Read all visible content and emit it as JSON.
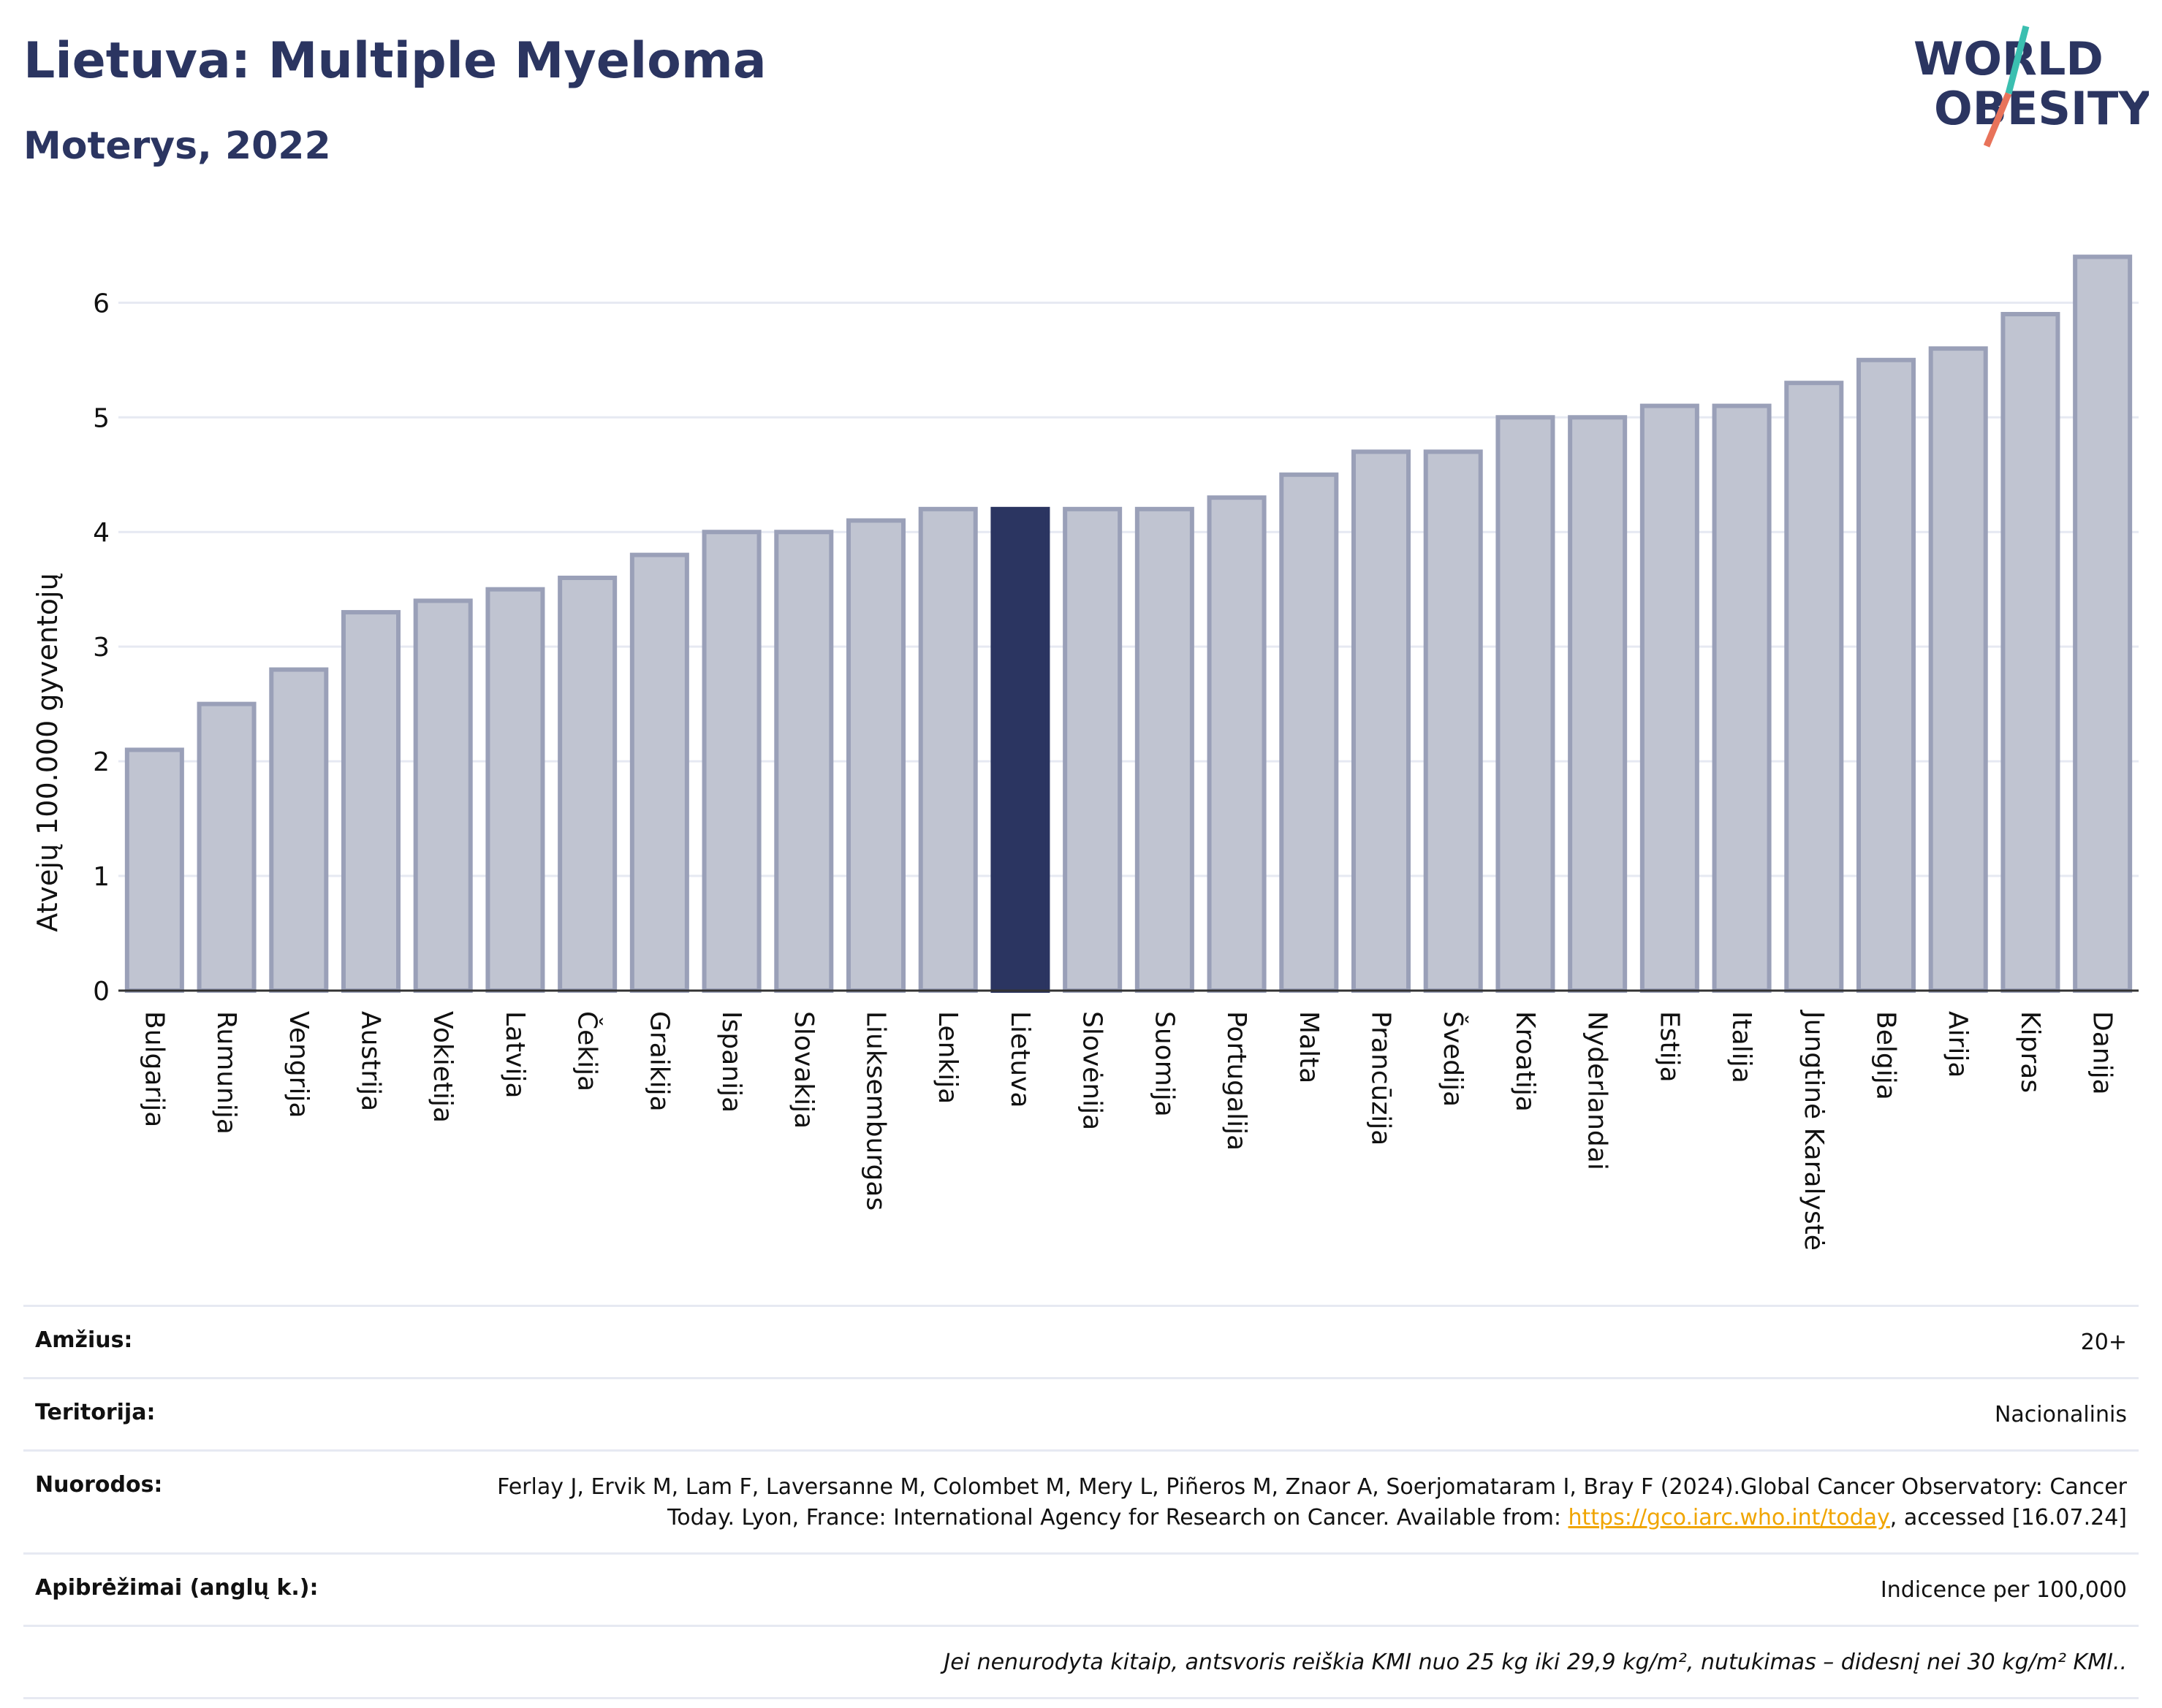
{
  "header": {
    "title": "Lietuva: Multiple Myeloma",
    "subtitle": "Moterys, 2022"
  },
  "logo": {
    "line1": "WORLD",
    "line2": "OBESITY",
    "colors": {
      "text": "#2b3561",
      "slash_top": "#3bbfb0",
      "slash_bottom": "#e8735a"
    }
  },
  "colors": {
    "bar_default": "#c0c4d1",
    "bar_default_border": "#9aa0b8",
    "bar_highlight": "#2b3561",
    "grid": "#e6e9f2",
    "axis": "#333333"
  },
  "chart_data": {
    "type": "bar",
    "ylabel": "Atvejų 100.000 gyventojų",
    "xlabel": "",
    "ylim": [
      0,
      6.55
    ],
    "yticks": [
      0,
      1,
      2,
      3,
      4,
      5,
      6
    ],
    "grid": true,
    "highlight": "Lietuva",
    "categories": [
      "Bulgarija",
      "Rumunija",
      "Vengrija",
      "Austrija",
      "Vokietija",
      "Latvija",
      "Čekija",
      "Graikija",
      "Ispanija",
      "Slovakija",
      "Liuksemburgas",
      "Lenkija",
      "Lietuva",
      "Slovėnija",
      "Suomija",
      "Portugalija",
      "Malta",
      "Prancūzija",
      "Švedija",
      "Kroatija",
      "Nyderlandai",
      "Estija",
      "Italija",
      "Jungtinė Karalystė",
      "Belgija",
      "Airija",
      "Kipras",
      "Danija"
    ],
    "values": [
      2.1,
      2.5,
      2.8,
      3.3,
      3.4,
      3.5,
      3.6,
      3.8,
      4.0,
      4.0,
      4.1,
      4.2,
      4.2,
      4.2,
      4.2,
      4.3,
      4.5,
      4.7,
      4.7,
      5.0,
      5.0,
      5.1,
      5.1,
      5.3,
      5.5,
      5.6,
      5.9,
      6.4
    ]
  },
  "meta": {
    "age": {
      "label": "Amžius:",
      "value": "20+"
    },
    "territory": {
      "label": "Teritorija:",
      "value": "Nacionalinis"
    },
    "references": {
      "label": "Nuorodos:",
      "text_before": "Ferlay J, Ervik M, Lam F, Laversanne M, Colombet M, Mery L, Piñeros M, Znaor A, Soerjomataram I, Bray F (2024).Global Cancer Observatory: Cancer Today. Lyon, France: International Agency for Research on Cancer. Available from: ",
      "link": "https://gco.iarc.who.int/today",
      "text_after": ", accessed [16.07.24]"
    },
    "definitions": {
      "label": "Apibrėžimai (anglų k.):",
      "value": "Indicence per 100,000"
    },
    "note": "Jei nenurodyta kitaip, antsvoris reiškia KMI nuo 25 kg iki 29,9 kg/m², nutukimas – didesnį nei 30 kg/m² KMI.."
  }
}
